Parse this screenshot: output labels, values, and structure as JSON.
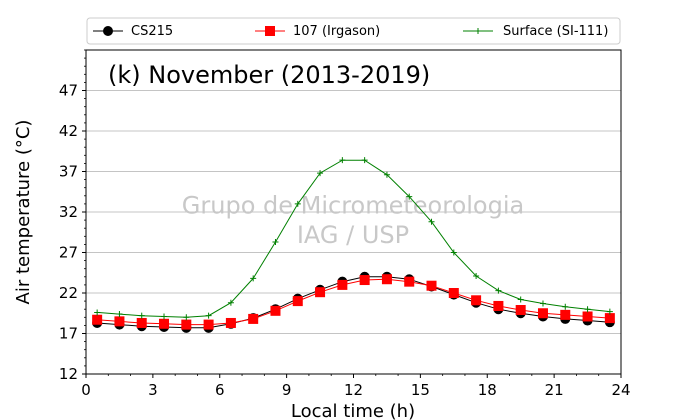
{
  "chart_data": {
    "type": "line",
    "title": "(k) November (2013-2019)",
    "xlabel": "Local time (h)",
    "ylabel": "Air temperature (°C)",
    "xlim": [
      0,
      24
    ],
    "ylim": [
      12,
      52
    ],
    "xticks": [
      0,
      3,
      6,
      9,
      12,
      15,
      18,
      21,
      24
    ],
    "yticks": [
      12,
      17,
      22,
      27,
      32,
      37,
      42,
      47
    ],
    "grid": "horizontal",
    "legend_position": "top",
    "watermark": [
      "Grupo de Micrometeorologia",
      "IAG / USP"
    ],
    "x": [
      0.5,
      1.5,
      2.5,
      3.5,
      4.5,
      5.5,
      6.5,
      7.5,
      8.5,
      9.5,
      10.5,
      11.5,
      12.5,
      13.5,
      14.5,
      15.5,
      16.5,
      17.5,
      18.5,
      19.5,
      20.5,
      21.5,
      22.5,
      23.5
    ],
    "series": [
      {
        "name": "CS215",
        "color": "#000000",
        "marker": "circle",
        "values": [
          18.3,
          18.1,
          17.9,
          17.8,
          17.7,
          17.7,
          18.2,
          18.9,
          20.0,
          21.3,
          22.4,
          23.4,
          24.0,
          24.0,
          23.7,
          22.8,
          21.8,
          20.8,
          20.0,
          19.5,
          19.1,
          18.8,
          18.6,
          18.4
        ]
      },
      {
        "name": "107 (Irgason)",
        "color": "#ff0000",
        "marker": "square",
        "values": [
          18.7,
          18.5,
          18.3,
          18.2,
          18.1,
          18.1,
          18.3,
          18.8,
          19.8,
          21.0,
          22.1,
          23.0,
          23.6,
          23.7,
          23.4,
          22.9,
          22.0,
          21.1,
          20.4,
          19.9,
          19.5,
          19.3,
          19.1,
          18.9
        ]
      },
      {
        "name": "Surface (SI-111)",
        "color": "#008000",
        "marker": "plus",
        "values": [
          19.6,
          19.4,
          19.2,
          19.1,
          19.0,
          19.2,
          20.8,
          23.8,
          28.3,
          33.0,
          36.8,
          38.4,
          38.4,
          36.6,
          33.9,
          30.8,
          27.0,
          24.1,
          22.3,
          21.2,
          20.7,
          20.3,
          20.0,
          19.7
        ]
      }
    ]
  }
}
